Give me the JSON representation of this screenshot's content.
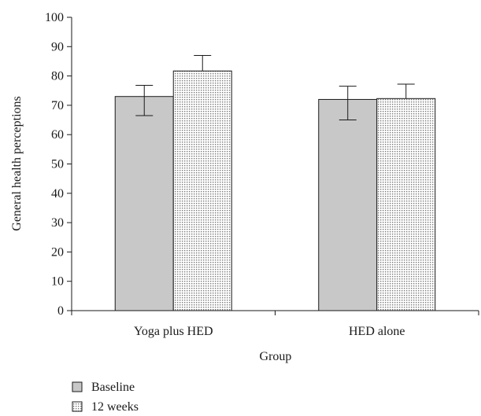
{
  "chart_data": {
    "type": "bar",
    "xlabel": "Group",
    "ylabel": "General health perceptions",
    "ylim": [
      0,
      100
    ],
    "yticks": [
      0,
      10,
      20,
      30,
      40,
      50,
      60,
      70,
      80,
      90,
      100
    ],
    "grid": false,
    "legend_position": "bottom-left",
    "categories": [
      "Yoga plus HED",
      "HED alone"
    ],
    "series": [
      {
        "name": "Baseline",
        "values": [
          73,
          72
        ],
        "error_lower": [
          66.5,
          65
        ],
        "error_upper": [
          76.8,
          76.5
        ],
        "fill": "#c8c8c8",
        "pattern": "solid"
      },
      {
        "name": "12 weeks",
        "values": [
          81.7,
          72.3
        ],
        "error_lower": [
          81.7,
          72.3
        ],
        "error_upper": [
          87,
          77.2
        ],
        "fill": "#e6e6e6",
        "pattern": "dotted"
      }
    ]
  }
}
